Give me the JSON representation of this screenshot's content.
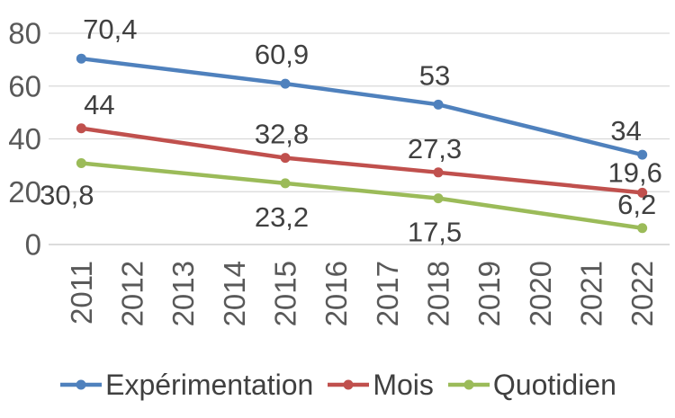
{
  "chart_data": {
    "type": "line",
    "title": "",
    "xlabel": "",
    "ylabel": "",
    "categories": [
      "2011",
      "2012",
      "2013",
      "2014",
      "2015",
      "2016",
      "2017",
      "2018",
      "2019",
      "2020",
      "2021",
      "2022"
    ],
    "ylim": [
      0,
      80
    ],
    "yticks": [
      0,
      20,
      40,
      60,
      80
    ],
    "grid": true,
    "legend_position": "bottom",
    "decimal_separator": ",",
    "tick_label_color": "#595959",
    "data_label_color": "#404040",
    "grid_color": "#D9D9D9",
    "series": [
      {
        "name": "Expérimentation",
        "color": "#4F81BD",
        "points": [
          {
            "category": "2011",
            "value": 70.4,
            "label": "70,4",
            "label_dx": 32,
            "label_dy": -22
          },
          {
            "category": "2015",
            "value": 60.9,
            "label": "60,9",
            "label_dx": -4,
            "label_dy": -22
          },
          {
            "category": "2018",
            "value": 53,
            "label": "53",
            "label_dx": -4,
            "label_dy": -22
          },
          {
            "category": "2022",
            "value": 34,
            "label": "34",
            "label_dx": -18,
            "label_dy": -16
          }
        ]
      },
      {
        "name": "Mois",
        "color": "#C0504D",
        "points": [
          {
            "category": "2011",
            "value": 44,
            "label": "44",
            "label_dx": 20,
            "label_dy": -16
          },
          {
            "category": "2015",
            "value": 32.8,
            "label": "32,8",
            "label_dx": -4,
            "label_dy": -16
          },
          {
            "category": "2018",
            "value": 27.3,
            "label": "27,3",
            "label_dx": -4,
            "label_dy": -16
          },
          {
            "category": "2022",
            "value": 19.6,
            "label": "19,6",
            "label_dx": -8,
            "label_dy": -12
          }
        ]
      },
      {
        "name": "Quotidien",
        "color": "#9BBB59",
        "points": [
          {
            "category": "2011",
            "value": 30.8,
            "label": "30,8",
            "label_dx": -16,
            "label_dy": 46
          },
          {
            "category": "2015",
            "value": 23.2,
            "label": "23,2",
            "label_dx": -4,
            "label_dy": 48
          },
          {
            "category": "2018",
            "value": 17.5,
            "label": "17,5",
            "label_dx": -4,
            "label_dy": 48
          },
          {
            "category": "2022",
            "value": 6.2,
            "label": "6,2",
            "label_dx": -6,
            "label_dy": -16
          }
        ]
      }
    ]
  }
}
